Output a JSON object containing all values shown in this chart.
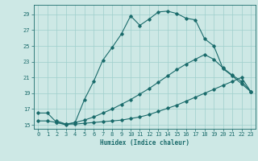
{
  "xlabel": "Humidex (Indice chaleur)",
  "xlim": [
    -0.5,
    23.5
  ],
  "ylim": [
    14.5,
    30.2
  ],
  "xticks": [
    0,
    1,
    2,
    3,
    4,
    5,
    6,
    7,
    8,
    9,
    10,
    11,
    12,
    13,
    14,
    15,
    16,
    17,
    18,
    19,
    20,
    21,
    22,
    23
  ],
  "yticks": [
    15,
    17,
    19,
    21,
    23,
    25,
    27,
    29
  ],
  "bg_color": "#cde8e5",
  "grid_color": "#9fcfcc",
  "line_color": "#1a6b6b",
  "line1_x": [
    0,
    1,
    2,
    3,
    4,
    5,
    6,
    7,
    8,
    9,
    10,
    11,
    12,
    13,
    14,
    15,
    16,
    17,
    18,
    19,
    20,
    21,
    22,
    23
  ],
  "line1_y": [
    16.5,
    16.5,
    15.3,
    15.0,
    15.3,
    18.2,
    20.5,
    23.2,
    24.8,
    26.5,
    28.8,
    27.6,
    28.4,
    29.3,
    29.4,
    29.1,
    28.5,
    28.3,
    25.9,
    25.0,
    22.1,
    21.2,
    20.2,
    19.2
  ],
  "line2_x": [
    0,
    1,
    2,
    3,
    4,
    5,
    6,
    7,
    8,
    9,
    10,
    11,
    12,
    13,
    14,
    15,
    16,
    17,
    18,
    19,
    20,
    21,
    22,
    23
  ],
  "line2_y": [
    15.5,
    15.5,
    15.3,
    15.1,
    15.1,
    15.2,
    15.3,
    15.4,
    15.5,
    15.6,
    15.8,
    16.0,
    16.3,
    16.7,
    17.1,
    17.5,
    18.0,
    18.5,
    19.0,
    19.5,
    20.0,
    20.5,
    21.0,
    19.2
  ],
  "line3_x": [
    2,
    3,
    4,
    5,
    6,
    7,
    8,
    9,
    10,
    11,
    12,
    13,
    14,
    15,
    16,
    17,
    18,
    19,
    20,
    21,
    22,
    23
  ],
  "line3_y": [
    15.5,
    15.1,
    15.3,
    15.6,
    16.0,
    16.5,
    17.0,
    17.6,
    18.2,
    18.9,
    19.6,
    20.4,
    21.2,
    22.0,
    22.7,
    23.3,
    23.9,
    23.3,
    22.2,
    21.3,
    20.5,
    19.2
  ]
}
